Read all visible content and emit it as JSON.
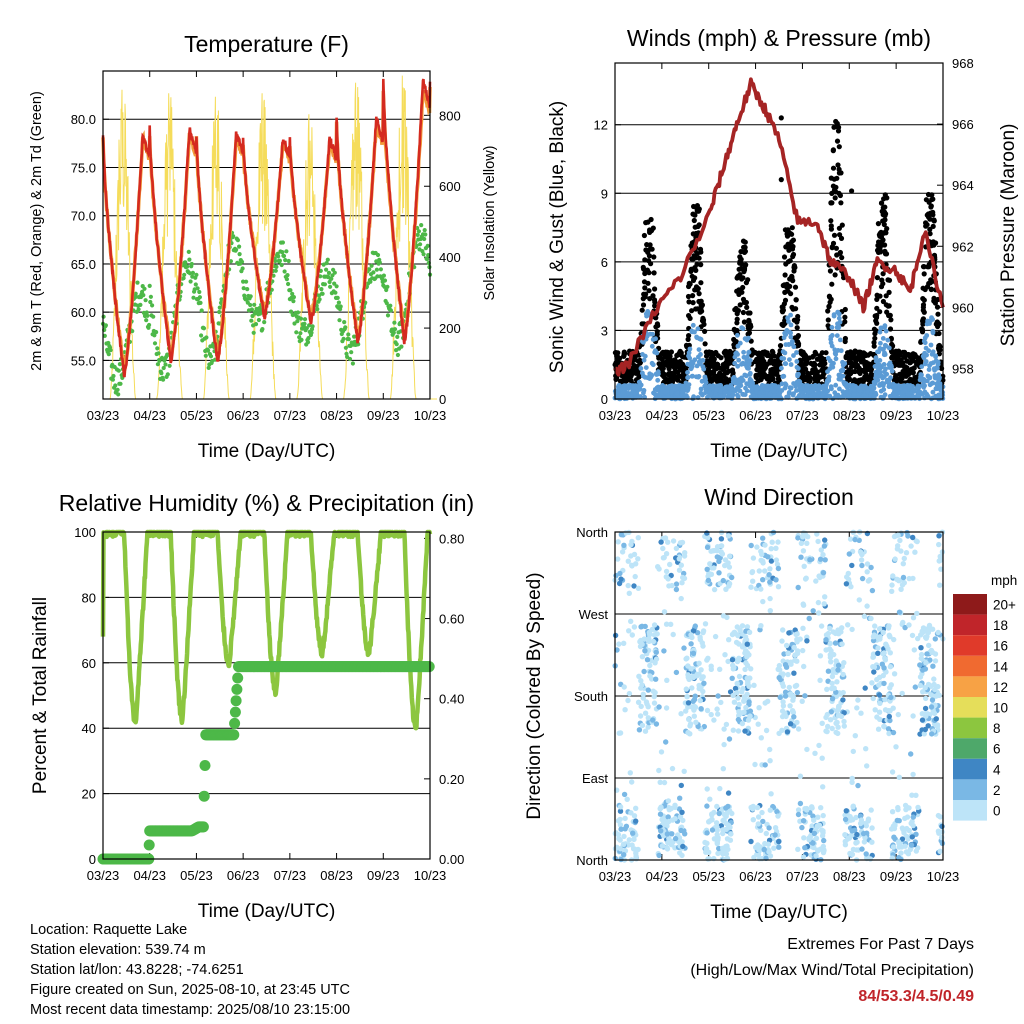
{
  "chart_data": [
    {
      "type": "line",
      "title": "Temperature (F)",
      "xlabel": "Time (Day/UTC)",
      "ylabel": "2m & 9m T (Red, Orange) & 2m Td (Green)",
      "y2label": "Solar Insolation (Yellow)",
      "x_ticks": [
        "03/23",
        "04/23",
        "05/23",
        "06/23",
        "07/23",
        "08/23",
        "09/23",
        "10/23"
      ],
      "ylim": [
        51.0,
        85.0
      ],
      "y_ticks": [
        "55.0",
        "60.0",
        "65.0",
        "70.0",
        "75.0",
        "80.0"
      ],
      "y2lim": [
        0,
        925
      ],
      "y2_ticks": [
        "0",
        "200",
        "400",
        "600",
        "800"
      ],
      "grid": true,
      "series": [
        {
          "color": "#d42a20",
          "daily_max": [
            78.5,
            79,
            78.5,
            78,
            78,
            80,
            84
          ],
          "daily_min": [
            53.5,
            55,
            55,
            59.5,
            59,
            57,
            57
          ]
        },
        {
          "color": "#f29a3a",
          "daily_max": [
            78,
            78.5,
            78,
            77.5,
            77.5,
            79.5,
            83
          ],
          "daily_min": [
            54,
            55.5,
            55.5,
            60,
            59.5,
            57.5,
            57.5
          ]
        },
        {
          "color": "#4db848",
          "daily_max": [
            62,
            65,
            67,
            66,
            64,
            65,
            68
          ],
          "daily_min": [
            53,
            54,
            55,
            59,
            58,
            56,
            57
          ]
        },
        {
          "color": "#f5dc5a",
          "daily_peak": [
            880,
            870,
            860,
            870,
            810,
            900,
            920
          ]
        }
      ]
    },
    {
      "type": "line",
      "title": "Winds (mph) & Pressure (mb)",
      "xlabel": "Time (Day/UTC)",
      "ylabel": "Sonic Wind & Gust (Blue, Black)",
      "y2label": "Station Pressure (Maroon)",
      "x_ticks": [
        "03/23",
        "04/23",
        "05/23",
        "06/23",
        "07/23",
        "08/23",
        "09/23",
        "10/23"
      ],
      "ylim": [
        0,
        14.7
      ],
      "y_ticks": [
        "0",
        "3",
        "6",
        "9",
        "12"
      ],
      "y2lim": [
        957,
        968
      ],
      "y2_ticks": [
        "958",
        "960",
        "962",
        "964",
        "966",
        "968"
      ],
      "grid": true,
      "series": [
        {
          "color": "#5b9bd5",
          "values_peak": [
            4.5,
            3.5,
            3.5,
            3.5,
            4,
            3,
            3.5
          ]
        },
        {
          "color": "#000000",
          "values_peak": [
            8,
            8.5,
            7,
            7.5,
            12.2,
            9,
            9
          ]
        },
        {
          "color": "#a52424",
          "x": [
            0,
            0.3,
            0.9,
            1.4,
            2.0,
            2.3,
            2.6,
            2.9,
            3.2,
            3.5,
            3.9,
            4.3,
            4.6,
            5.0,
            5.3,
            5.6,
            6.0,
            6.3,
            6.6,
            7.0
          ],
          "y": [
            957.8,
            958.2,
            960.0,
            961.0,
            963.0,
            964.5,
            966.0,
            967.3,
            966.5,
            965.5,
            962.8,
            962.8,
            961.5,
            961.0,
            960.0,
            961.5,
            961.2,
            960.5,
            962.5,
            960.0
          ]
        }
      ]
    },
    {
      "type": "line",
      "title": "Relative Humidity (%) & Precipitation (in)",
      "xlabel": "Time (Day/UTC)",
      "ylabel": "Percent & Total Rainfall",
      "x_ticks": [
        "03/23",
        "04/23",
        "05/23",
        "06/23",
        "07/23",
        "08/23",
        "09/23",
        "10/23"
      ],
      "ylim": [
        0,
        100
      ],
      "y_ticks": [
        "0",
        "20",
        "40",
        "60",
        "80",
        "100"
      ],
      "y2lim": [
        0,
        0.816
      ],
      "y2_ticks": [
        "0.00",
        "0.20",
        "0.40",
        "0.60",
        "0.80"
      ],
      "grid": true,
      "series": [
        {
          "color": "#8cc63f",
          "daily_max": [
            100,
            100,
            100,
            100,
            100,
            100,
            100
          ],
          "daily_min": [
            42,
            43,
            60,
            51,
            63,
            63,
            40
          ]
        },
        {
          "color": "#4db848",
          "x": [
            0,
            0.98,
            1.0,
            1.9,
            2.05,
            2.15,
            2.2,
            2.8,
            2.9,
            7.0
          ],
          "y": [
            0.0,
            0.0,
            0.07,
            0.07,
            0.08,
            0.08,
            0.31,
            0.31,
            0.48,
            0.48
          ]
        }
      ]
    },
    {
      "type": "scatter",
      "title": "Wind Direction",
      "xlabel": "Time (Day/UTC)",
      "ylabel": "Direction (Colored By Speed)",
      "x_ticks": [
        "03/23",
        "04/23",
        "05/23",
        "06/23",
        "07/23",
        "08/23",
        "09/23",
        "10/23"
      ],
      "y_ticks": [
        "North",
        "East",
        "South",
        "West",
        "North"
      ],
      "ylim": [
        0,
        360
      ],
      "grid": true,
      "legend": {
        "title": "mph",
        "labels": [
          "20+",
          "18",
          "16",
          "14",
          "12",
          "10",
          "8",
          "6",
          "4",
          "2",
          "0"
        ],
        "colors": [
          "#8e1a1a",
          "#c0252a",
          "#e03a2a",
          "#f06a30",
          "#f7a245",
          "#e5de5a",
          "#8cc63f",
          "#4ea86a",
          "#3f86c4",
          "#7ab8e5",
          "#bde4f8"
        ]
      },
      "point_colors": [
        "#bde4f8",
        "#7ab8e5",
        "#3f86c4"
      ]
    }
  ],
  "station_info": [
    "Location: Raquette Lake",
    "Station elevation: 539.74 m",
    "Station lat/lon: 43.8228; -74.6251",
    "Figure created on Sun, 2025-08-10, at 23:45 UTC",
    "Most recent data timestamp: 2025/08/10 23:15:00"
  ],
  "extremes": {
    "title": "Extremes For Past 7 Days",
    "subtitle": "(High/Low/Max Wind/Total Precipitation)",
    "values": "84/53.3/4.5/0.49"
  }
}
